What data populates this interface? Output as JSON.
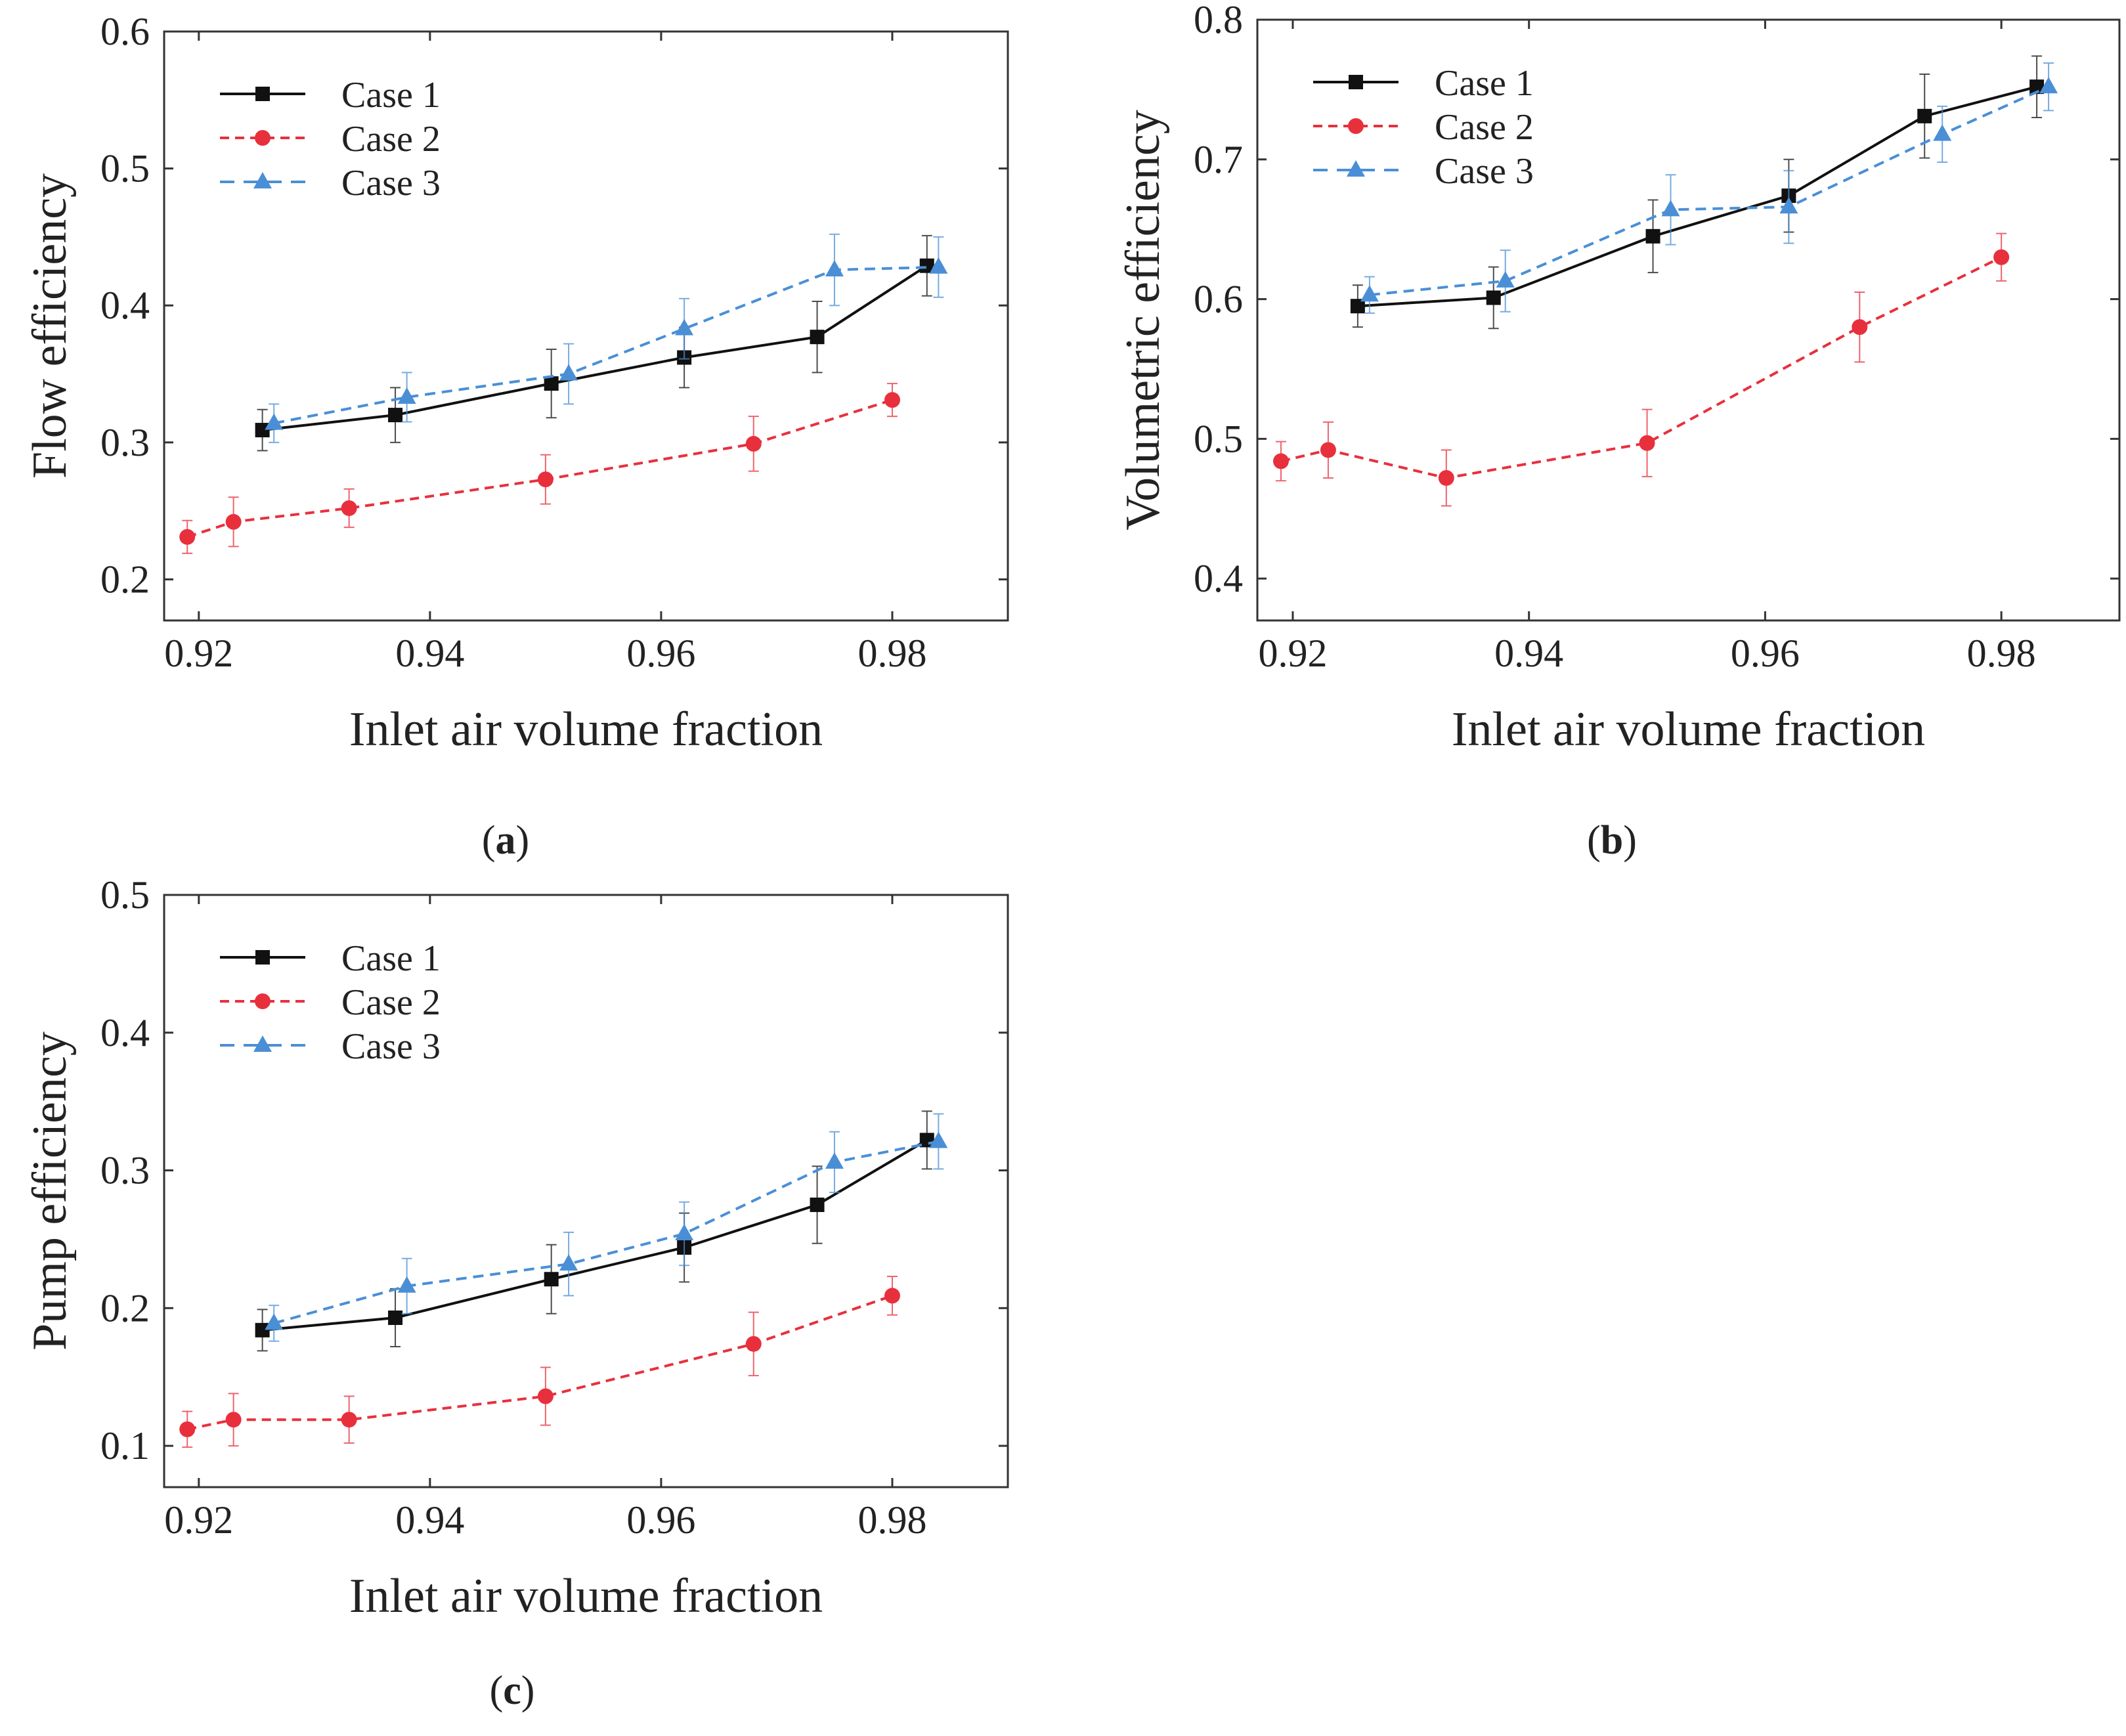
{
  "figure": {
    "colors": {
      "case1": "#111111",
      "case2": "#e8303d",
      "case3": "#4a8fd6",
      "axis": "#333333"
    }
  },
  "chart_data": [
    {
      "id": "a",
      "type": "line",
      "panel_label": "a",
      "xlabel": "Inlet air volume fraction",
      "ylabel": "Flow efficiency",
      "xlim": [
        0.917,
        0.99
      ],
      "ylim": [
        0.17,
        0.6
      ],
      "xticks": [
        0.92,
        0.94,
        0.96,
        0.98
      ],
      "xtick_labels": [
        "0.92",
        "0.94",
        "0.96",
        "0.98"
      ],
      "yticks": [
        0.2,
        0.3,
        0.4,
        0.5,
        0.6
      ],
      "ytick_labels": [
        "0.2",
        "0.3",
        "0.4",
        "0.5",
        "0.6"
      ],
      "legend": {
        "location": "top-left",
        "entries": [
          "Case 1",
          "Case 2",
          "Case 3"
        ]
      },
      "series": [
        {
          "name": "Case 1",
          "style": "solid",
          "marker": "square",
          "x": [
            0.9255,
            0.937,
            0.9505,
            0.962,
            0.9735,
            0.983
          ],
          "y": [
            0.309,
            0.32,
            0.343,
            0.362,
            0.377,
            0.429
          ],
          "err": [
            0.015,
            0.02,
            0.025,
            0.022,
            0.026,
            0.022
          ]
        },
        {
          "name": "Case 2",
          "style": "dashed",
          "marker": "circle",
          "x": [
            0.919,
            0.923,
            0.933,
            0.95,
            0.968,
            0.98
          ],
          "y": [
            0.231,
            0.242,
            0.252,
            0.273,
            0.299,
            0.331
          ],
          "err": [
            0.012,
            0.018,
            0.014,
            0.018,
            0.02,
            0.012
          ]
        },
        {
          "name": "Case 3",
          "style": "dashed",
          "marker": "triangle",
          "x": [
            0.9265,
            0.938,
            0.952,
            0.962,
            0.975,
            0.984
          ],
          "y": [
            0.314,
            0.333,
            0.35,
            0.383,
            0.426,
            0.428
          ],
          "err": [
            0.014,
            0.018,
            0.022,
            0.022,
            0.026,
            0.022
          ]
        }
      ]
    },
    {
      "id": "b",
      "type": "line",
      "panel_label": "b",
      "xlabel": "Inlet air volume fraction",
      "ylabel": "Volumetric efficiency",
      "xlim": [
        0.917,
        0.99
      ],
      "ylim": [
        0.37,
        0.8
      ],
      "xticks": [
        0.92,
        0.94,
        0.96,
        0.98
      ],
      "xtick_labels": [
        "0.92",
        "0.94",
        "0.96",
        "0.98"
      ],
      "yticks": [
        0.4,
        0.5,
        0.6,
        0.7,
        0.8
      ],
      "ytick_labels": [
        "0.4",
        "0.5",
        "0.6",
        "0.7",
        "0.8"
      ],
      "legend": {
        "location": "top-left",
        "entries": [
          "Case 1",
          "Case 2",
          "Case 3"
        ]
      },
      "series": [
        {
          "name": "Case 1",
          "style": "solid",
          "marker": "square",
          "x": [
            0.9255,
            0.937,
            0.9505,
            0.962,
            0.9735,
            0.983
          ],
          "y": [
            0.595,
            0.601,
            0.645,
            0.674,
            0.731,
            0.752
          ],
          "err": [
            0.015,
            0.022,
            0.026,
            0.026,
            0.03,
            0.022
          ]
        },
        {
          "name": "Case 2",
          "style": "dashed",
          "marker": "circle",
          "x": [
            0.919,
            0.923,
            0.933,
            0.95,
            0.968,
            0.98
          ],
          "y": [
            0.484,
            0.492,
            0.472,
            0.497,
            0.58,
            0.63
          ],
          "err": [
            0.014,
            0.02,
            0.02,
            0.024,
            0.025,
            0.017
          ]
        },
        {
          "name": "Case 3",
          "style": "dashed",
          "marker": "triangle",
          "x": [
            0.9265,
            0.938,
            0.952,
            0.962,
            0.975,
            0.984
          ],
          "y": [
            0.603,
            0.613,
            0.664,
            0.666,
            0.718,
            0.752
          ],
          "err": [
            0.013,
            0.022,
            0.025,
            0.026,
            0.02,
            0.017
          ]
        }
      ]
    },
    {
      "id": "c",
      "type": "line",
      "panel_label": "c",
      "xlabel": "Inlet air volume fraction",
      "ylabel": "Pump efficiency",
      "xlim": [
        0.917,
        0.99
      ],
      "ylim": [
        0.07,
        0.5
      ],
      "xticks": [
        0.92,
        0.94,
        0.96,
        0.98
      ],
      "xtick_labels": [
        "0.92",
        "0.94",
        "0.96",
        "0.98"
      ],
      "yticks": [
        0.1,
        0.2,
        0.3,
        0.4,
        0.5
      ],
      "ytick_labels": [
        "0.1",
        "0.2",
        "0.3",
        "0.4",
        "0.5"
      ],
      "legend": {
        "location": "top-left",
        "entries": [
          "Case 1",
          "Case 2",
          "Case 3"
        ]
      },
      "series": [
        {
          "name": "Case 1",
          "style": "solid",
          "marker": "square",
          "x": [
            0.9255,
            0.937,
            0.9505,
            0.962,
            0.9735,
            0.983
          ],
          "y": [
            0.184,
            0.193,
            0.221,
            0.244,
            0.275,
            0.322
          ],
          "err": [
            0.015,
            0.021,
            0.025,
            0.025,
            0.028,
            0.021
          ]
        },
        {
          "name": "Case 2",
          "style": "dashed",
          "marker": "circle",
          "x": [
            0.919,
            0.923,
            0.933,
            0.95,
            0.968,
            0.98
          ],
          "y": [
            0.112,
            0.119,
            0.119,
            0.136,
            0.174,
            0.209
          ],
          "err": [
            0.013,
            0.019,
            0.017,
            0.021,
            0.023,
            0.014
          ]
        },
        {
          "name": "Case 3",
          "style": "dashed",
          "marker": "triangle",
          "x": [
            0.9265,
            0.938,
            0.952,
            0.962,
            0.975,
            0.984
          ],
          "y": [
            0.189,
            0.216,
            0.232,
            0.254,
            0.306,
            0.321
          ],
          "err": [
            0.013,
            0.02,
            0.023,
            0.023,
            0.022,
            0.02
          ]
        }
      ]
    }
  ]
}
